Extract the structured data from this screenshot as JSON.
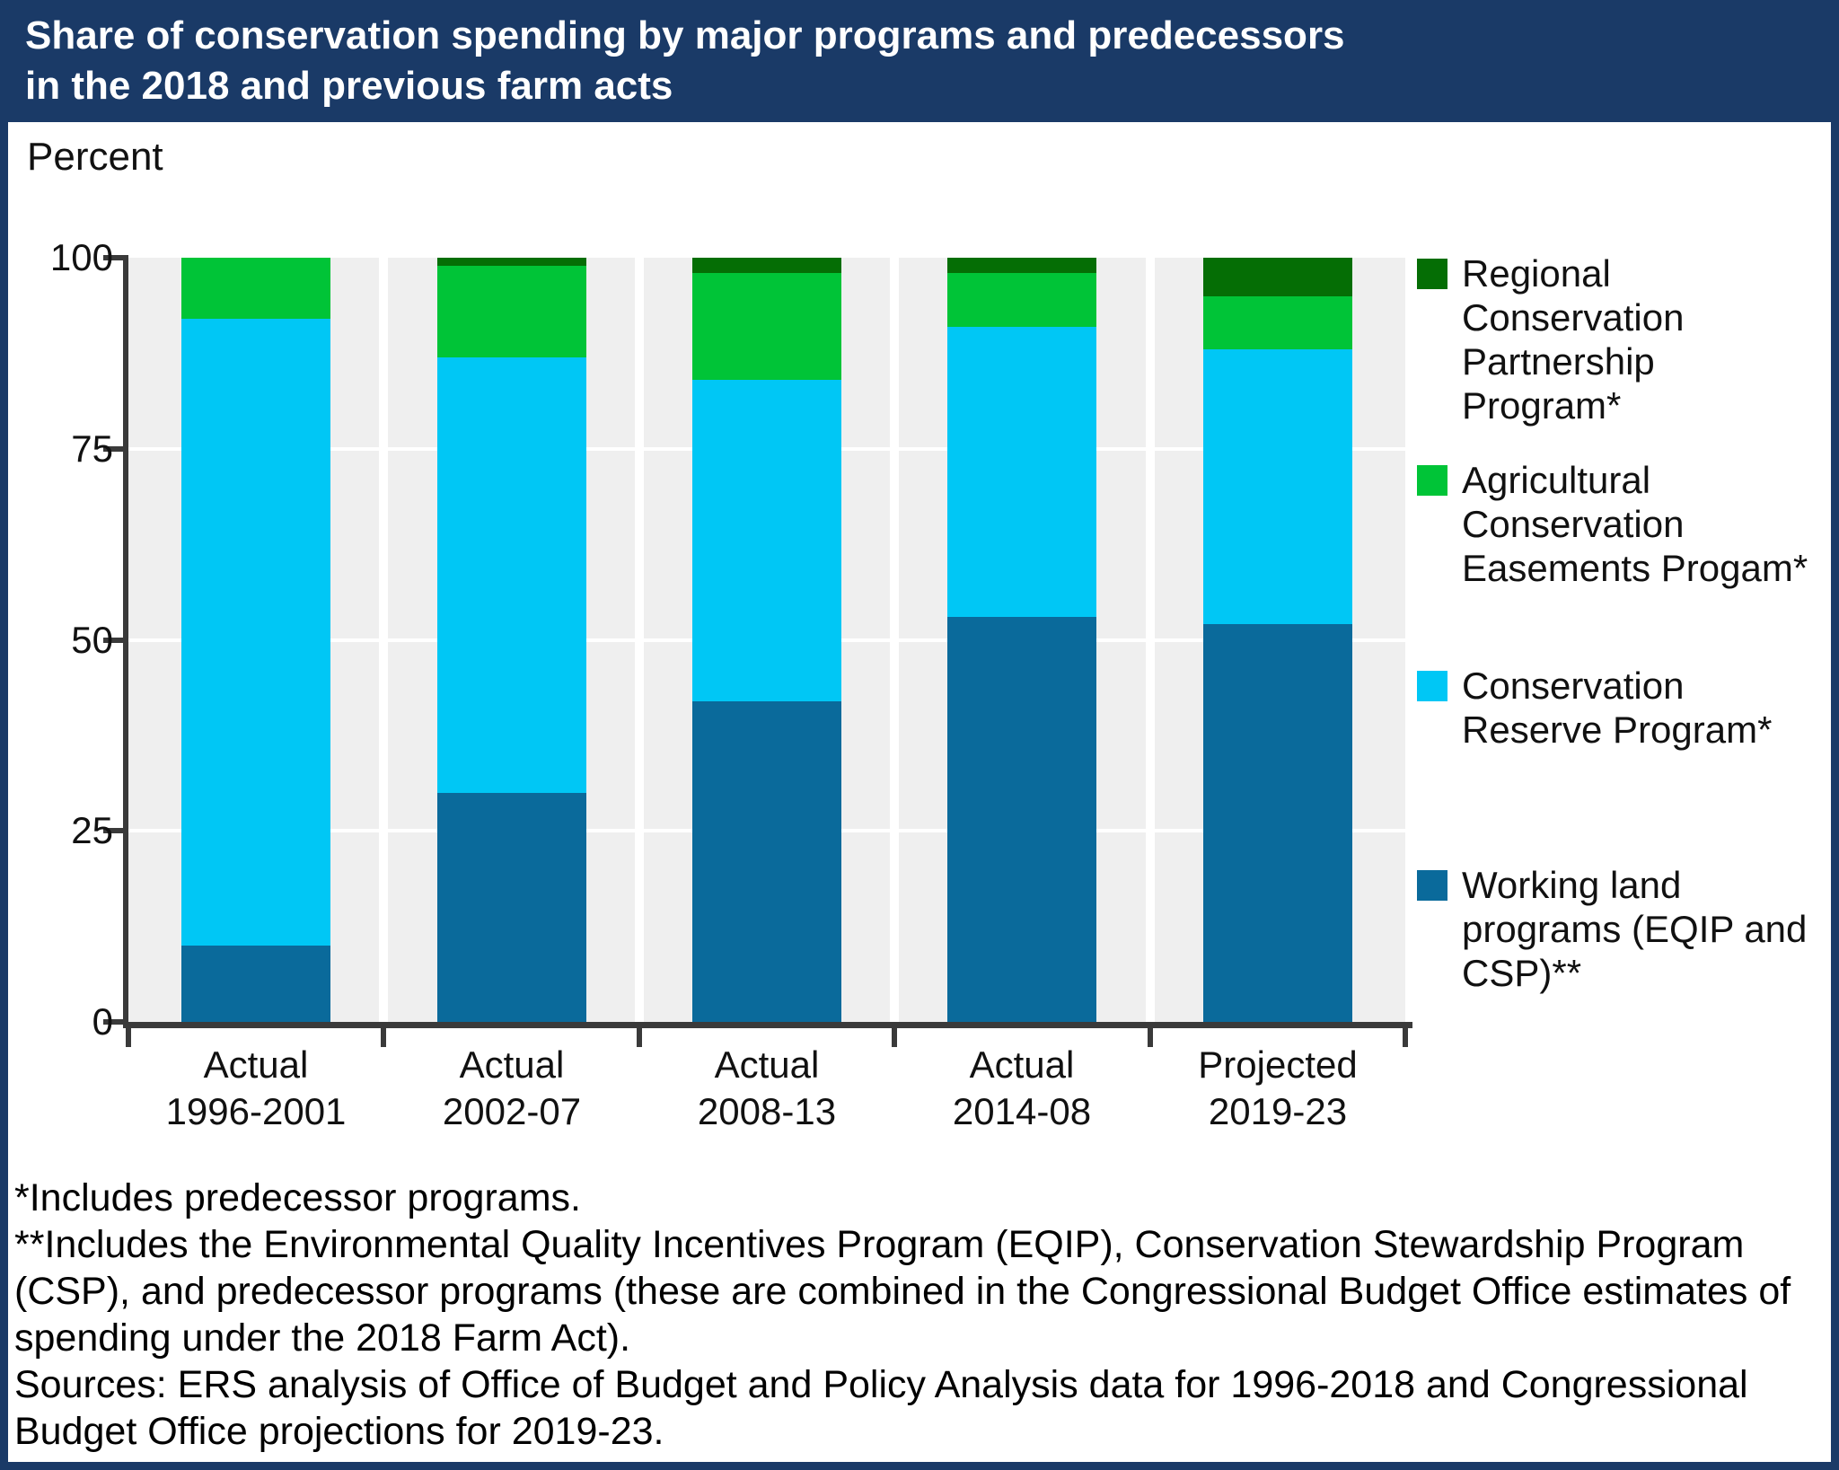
{
  "title": {
    "line1": "Share of conservation spending by major programs and predecessors",
    "line2": "in the 2018 and previous farm acts"
  },
  "y_axis": {
    "label": "Percent",
    "ticks": [
      "100",
      "75",
      "50",
      "25",
      "0"
    ]
  },
  "categories": [
    {
      "line1": "Actual",
      "line2": "1996-2001"
    },
    {
      "line1": "Actual",
      "line2": "2002-07"
    },
    {
      "line1": "Actual",
      "line2": "2008-13"
    },
    {
      "line1": "Actual",
      "line2": "2014-08"
    },
    {
      "line1": "Projected",
      "line2": "2019-23"
    }
  ],
  "legend": [
    {
      "label": "Regional Conservation Partnership Program*",
      "color": "#056E05"
    },
    {
      "label": "Agricultural Conservation Easements Progam*",
      "color": "#00C437"
    },
    {
      "label": "Conservation Reserve Program*",
      "color": "#00C7F5"
    },
    {
      "label": "Working land programs (EQIP and CSP)**",
      "color": "#0A6A9B"
    }
  ],
  "notes": {
    "note1": "*Includes predecessor programs.",
    "note2": "**Includes the Environmental Quality Incentives Program (EQIP), Conservation Stewardship Program (CSP), and predecessor programs (these are combined in the Congressional Budget Office estimates of spending under the 2018 Farm Act).",
    "sources": "Sources: ERS analysis of Office of Budget and Policy Analysis data for 1996-2018 and Congressional Budget Office projections for 2019-23."
  },
  "colors": {
    "navy_frame": "#1A3A67",
    "title_text": "#FFFFFF",
    "plot_background": "#EFEFEF",
    "gridline": "#FFFFFF",
    "axis": "#3A3A3A",
    "rcpp_dark_green": "#056E05",
    "acep_green": "#00C437",
    "crp_cyan": "#00C7F5",
    "working_land_blue": "#0A6A9B"
  },
  "chart_data": {
    "type": "bar",
    "stacked": true,
    "title": "Share of conservation spending by major programs and predecessors in the 2018 and previous farm acts",
    "ylabel": "Percent",
    "ylim": [
      0,
      100
    ],
    "grid": true,
    "legend_position": "right",
    "categories": [
      "Actual 1996-2001",
      "Actual 2002-07",
      "Actual 2008-13",
      "Actual 2014-08",
      "Projected 2019-23"
    ],
    "series": [
      {
        "name": "Working land programs (EQIP and CSP)**",
        "color": "#0A6A9B",
        "values": [
          10,
          30,
          42,
          53,
          52
        ]
      },
      {
        "name": "Conservation Reserve Program*",
        "color": "#00C7F5",
        "values": [
          82,
          57,
          42,
          38,
          36
        ]
      },
      {
        "name": "Agricultural Conservation Easements Progam*",
        "color": "#00C437",
        "values": [
          8,
          12,
          14,
          7,
          7
        ]
      },
      {
        "name": "Regional Conservation Partnership Program*",
        "color": "#056E05",
        "values": [
          0,
          1,
          2,
          2,
          5
        ]
      }
    ]
  }
}
